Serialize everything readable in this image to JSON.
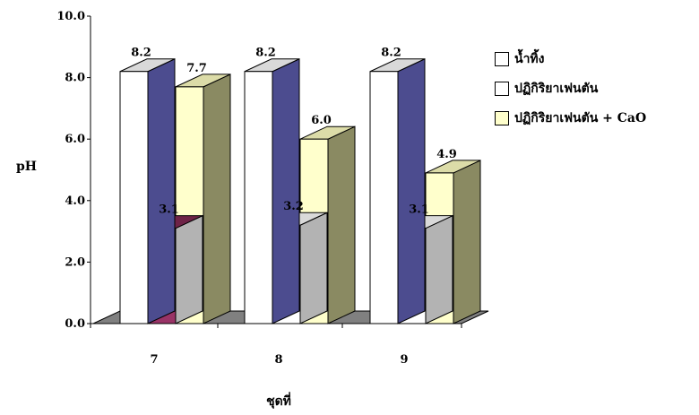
{
  "chart_data": {
    "type": "bar",
    "categories": [
      "7",
      "8",
      "9"
    ],
    "series": [
      {
        "name": "น้ำทิ้ง",
        "values": [
          8.2,
          8.2,
          8.2
        ],
        "label_text": [
          "8.2",
          "8.2",
          "8.2"
        ]
      },
      {
        "name": "ปฏิกิริยาเฟนตัน",
        "values": [
          3.1,
          3.2,
          3.1
        ],
        "label_text": [
          "3.1",
          "3.2",
          "3.1"
        ]
      },
      {
        "name": "ปฏิกิริยาเฟนตัน + CaO",
        "values": [
          7.7,
          6.0,
          4.9
        ],
        "label_text": [
          "7.7",
          "6.0",
          "4.9"
        ]
      }
    ],
    "xlabel": "ชุดที่",
    "ylabel": "pH",
    "ylim": [
      0,
      10
    ],
    "yticks": [
      "0.0",
      "2.0",
      "4.0",
      "6.0",
      "8.0",
      "10.0"
    ],
    "legend_position": "right",
    "grid": false
  },
  "colors": {
    "series_front": [
      "#ffffff",
      "#ffffff",
      "#ffffcc"
    ],
    "series_top": [
      "#d9d9d9",
      "#d9d9d9",
      "#dcdca8"
    ],
    "series_side": [
      "#4c4c8f",
      "#b3b3b3",
      "#8a8a62"
    ],
    "highlight_bar_front": "#993366",
    "highlight_bar_top": "#6e2347",
    "floor": "#808080"
  }
}
